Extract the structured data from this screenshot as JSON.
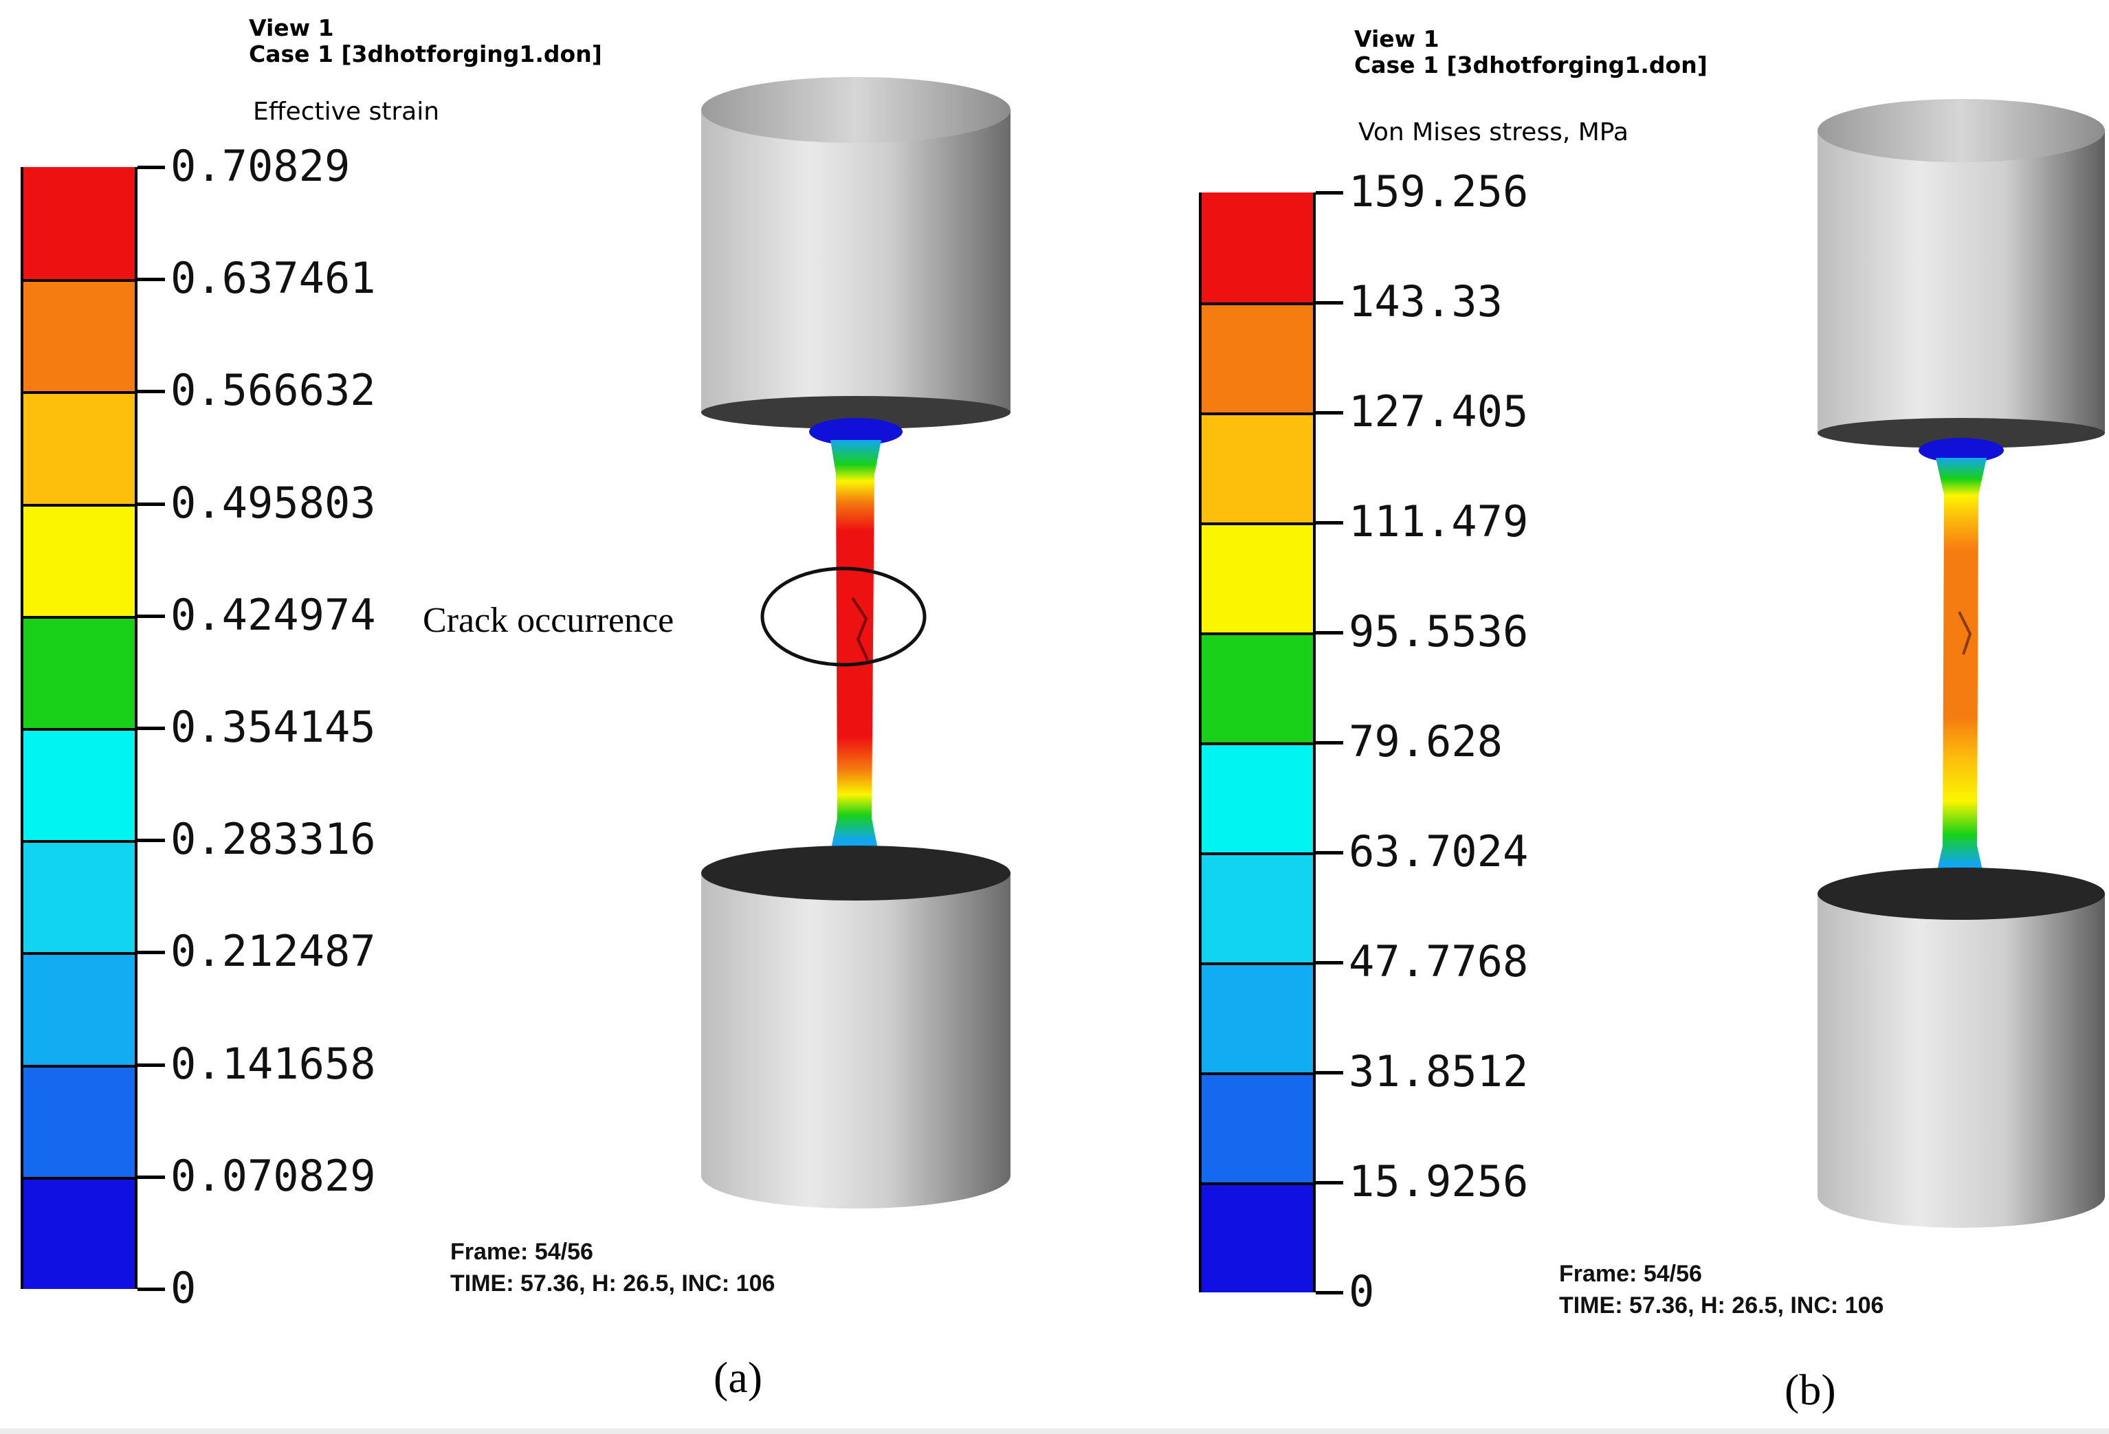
{
  "panels": [
    {
      "view_label": "View 1",
      "case_label": "Case 1  [3dhotforging1.don]",
      "quantity_label": "Effective strain",
      "legend_values": [
        "0.70829",
        "0.637461",
        "0.566632",
        "0.495803",
        "0.424974",
        "0.354145",
        "0.283316",
        "0.212487",
        "0.141658",
        "0.070829",
        "0"
      ],
      "band_colors": [
        "#ee1111",
        "#f57c10",
        "#fdbf0c",
        "#fbf500",
        "#18d018",
        "#00f5f2",
        "#11d4f0",
        "#12acf2",
        "#1469ee",
        "#1010e2"
      ],
      "frame_label": "Frame: 54/56",
      "time_label": "TIME: 57.36,  H: 26.5, INC: 106",
      "annotation": "Crack occurrence",
      "caption": "(a)"
    },
    {
      "view_label": "View 1",
      "case_label": "Case 1  [3dhotforging1.don]",
      "quantity_label": "Von Mises stress, MPa",
      "legend_values": [
        "159.256",
        "143.33",
        "127.405",
        "111.479",
        "95.5536",
        "79.628",
        "63.7024",
        "47.7768",
        "31.8512",
        "15.9256",
        "0"
      ],
      "band_colors": [
        "#ee1111",
        "#f57c10",
        "#fdbf0c",
        "#fbf500",
        "#18d018",
        "#00f5f2",
        "#11d4f0",
        "#12acf2",
        "#1469ee",
        "#1010e2"
      ],
      "frame_label": "Frame: 54/56",
      "time_label": "TIME: 57.36,  H: 26.5, INC: 106",
      "caption": "(b)"
    }
  ]
}
